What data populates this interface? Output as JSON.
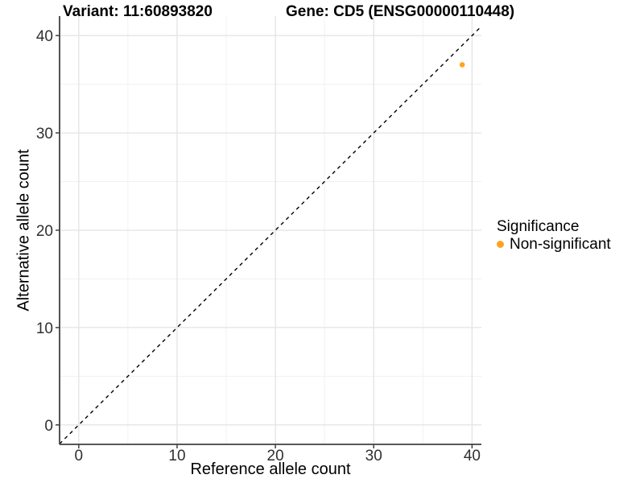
{
  "chart_data": {
    "type": "scatter",
    "title_left": "Variant: 11:60893820",
    "title_right": "Gene: CD5 (ENSG00000110448)",
    "xlabel": "Reference allele count",
    "ylabel": "Alternative allele count",
    "xlim": [
      -1.95,
      40.95
    ],
    "ylim": [
      -2,
      42
    ],
    "x_ticks": [
      0,
      10,
      20,
      30,
      40
    ],
    "y_ticks": [
      0,
      10,
      20,
      30,
      40
    ],
    "x_minor_ticks": [
      5,
      15,
      25,
      35
    ],
    "y_minor_ticks": [
      5,
      15,
      25,
      35
    ],
    "grid": true,
    "identity_line": {
      "style": "dashed",
      "slope": 1,
      "intercept": 0,
      "color": "#000000"
    },
    "series": [
      {
        "name": "Non-significant",
        "color": "#FFA51E",
        "points": [
          {
            "x": 39,
            "y": 37
          }
        ]
      }
    ],
    "legend": {
      "title": "Significance",
      "position": "right",
      "entries": [
        {
          "label": "Non-significant",
          "color": "#FFA51E"
        }
      ]
    }
  }
}
